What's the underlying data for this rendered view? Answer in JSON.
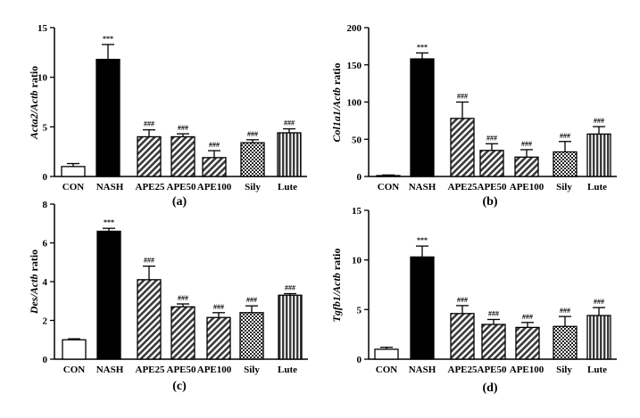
{
  "chart_data": [
    {
      "type": "bar",
      "panel_label": "(a)",
      "ylabel_gene": "Acta2/Actb",
      "ylabel_suffix": " ratio",
      "categories": [
        "CON",
        "NASH",
        "APE25",
        "APE50",
        "APE100",
        "Sily",
        "Lute"
      ],
      "values": [
        1.0,
        11.8,
        4.0,
        4.0,
        1.9,
        3.4,
        4.4
      ],
      "errors": [
        0.3,
        1.5,
        0.7,
        0.3,
        0.7,
        0.3,
        0.4
      ],
      "annotations": [
        "",
        "***",
        "###",
        "###",
        "###",
        "###",
        "###"
      ],
      "ylim": [
        0,
        15
      ],
      "yticks": [
        0,
        5,
        10,
        15
      ]
    },
    {
      "type": "bar",
      "panel_label": "(b)",
      "ylabel_gene": "Col1a1/Actb",
      "ylabel_suffix": " ratio",
      "categories": [
        "CON",
        "NASH",
        "APE25",
        "APE50",
        "APE100",
        "Sily",
        "Lute"
      ],
      "values": [
        1,
        158,
        78,
        35,
        26,
        33,
        57
      ],
      "errors": [
        1,
        8,
        22,
        9,
        10,
        14,
        10
      ],
      "annotations": [
        "",
        "***",
        "###",
        "###",
        "###",
        "###",
        "###"
      ],
      "ylim": [
        0,
        200
      ],
      "yticks": [
        0,
        50,
        100,
        150,
        200
      ]
    },
    {
      "type": "bar",
      "panel_label": "(c)",
      "ylabel_gene": "Des/Actb",
      "ylabel_suffix": " ratio",
      "categories": [
        "CON",
        "NASH",
        "APE25",
        "APE50",
        "APE100",
        "Sily",
        "Lute"
      ],
      "values": [
        1.0,
        6.6,
        4.1,
        2.7,
        2.15,
        2.4,
        3.3
      ],
      "errors": [
        0.05,
        0.15,
        0.7,
        0.15,
        0.25,
        0.35,
        0.08
      ],
      "annotations": [
        "",
        "***",
        "###",
        "###",
        "###",
        "###",
        "###"
      ],
      "ylim": [
        0,
        8
      ],
      "yticks": [
        0,
        2,
        4,
        6,
        8
      ]
    },
    {
      "type": "bar",
      "panel_label": "(d)",
      "ylabel_gene": "Tgfb1/Actb",
      "ylabel_suffix": " ratio",
      "categories": [
        "CON",
        "NASH",
        "APE25",
        "APE50",
        "APE100",
        "Sily",
        "Lute"
      ],
      "values": [
        1.0,
        10.3,
        4.6,
        3.5,
        3.2,
        3.3,
        4.4
      ],
      "errors": [
        0.2,
        1.1,
        0.8,
        0.5,
        0.5,
        1.0,
        0.8
      ],
      "annotations": [
        "",
        "***",
        "###",
        "###",
        "###",
        "###",
        "###"
      ],
      "ylim": [
        0,
        15
      ],
      "yticks": [
        0,
        5,
        10,
        15
      ]
    }
  ]
}
